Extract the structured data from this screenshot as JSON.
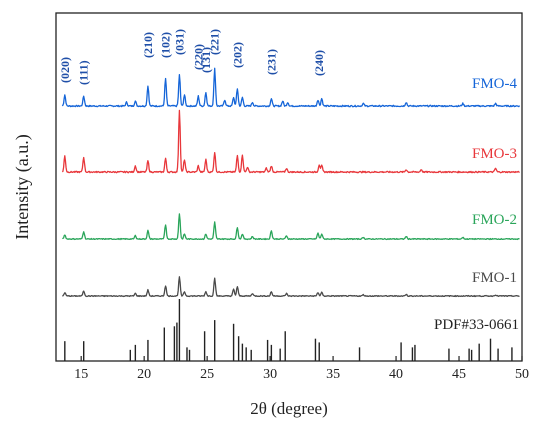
{
  "chart_data": {
    "type": "line",
    "xlabel": "2θ (degree)",
    "ylabel": "Intensity (a.u.)",
    "xlim": [
      13,
      50
    ],
    "x_ticks": [
      15,
      20,
      25,
      30,
      35,
      40,
      45,
      50
    ],
    "x_tick_labels": [
      "15",
      "20",
      "25",
      "30",
      "35",
      "40",
      "45",
      "50"
    ],
    "y_ticks_shown": false,
    "grid": false,
    "series": [
      {
        "name": "FMO-4",
        "color": "#1565d8",
        "peaks": [
          [
            13.7,
            18
          ],
          [
            15.2,
            16
          ],
          [
            18.6,
            6
          ],
          [
            19.3,
            8
          ],
          [
            20.3,
            32
          ],
          [
            21.7,
            44
          ],
          [
            22.8,
            50
          ],
          [
            23.2,
            18
          ],
          [
            24.3,
            16
          ],
          [
            24.9,
            22
          ],
          [
            25.6,
            60
          ],
          [
            26.4,
            10
          ],
          [
            27.1,
            14
          ],
          [
            27.4,
            28
          ],
          [
            27.8,
            14
          ],
          [
            28.6,
            6
          ],
          [
            30.1,
            12
          ],
          [
            31.0,
            8
          ],
          [
            31.4,
            6
          ],
          [
            33.8,
            10
          ],
          [
            34.1,
            12
          ],
          [
            37.4,
            4
          ],
          [
            40.8,
            6
          ],
          [
            45.3,
            4
          ],
          [
            47.9,
            4
          ]
        ]
      },
      {
        "name": "FMO-3",
        "color": "#e8373b",
        "peaks": [
          [
            13.7,
            26
          ],
          [
            15.2,
            24
          ],
          [
            19.3,
            10
          ],
          [
            20.3,
            18
          ],
          [
            21.7,
            22
          ],
          [
            22.8,
            100
          ],
          [
            23.2,
            20
          ],
          [
            24.3,
            10
          ],
          [
            24.9,
            20
          ],
          [
            25.6,
            32
          ],
          [
            27.4,
            26
          ],
          [
            27.8,
            28
          ],
          [
            28.2,
            8
          ],
          [
            29.7,
            6
          ],
          [
            30.1,
            10
          ],
          [
            31.3,
            6
          ],
          [
            33.9,
            12
          ],
          [
            34.1,
            10
          ],
          [
            40.8,
            4
          ],
          [
            42.0,
            4
          ],
          [
            47.9,
            6
          ]
        ]
      },
      {
        "name": "FMO-2",
        "color": "#2aa55a",
        "peaks": [
          [
            13.7,
            10
          ],
          [
            15.2,
            18
          ],
          [
            19.3,
            8
          ],
          [
            20.3,
            20
          ],
          [
            21.7,
            34
          ],
          [
            22.8,
            60
          ],
          [
            23.2,
            12
          ],
          [
            24.9,
            12
          ],
          [
            25.6,
            40
          ],
          [
            27.4,
            28
          ],
          [
            27.8,
            12
          ],
          [
            28.6,
            6
          ],
          [
            30.1,
            20
          ],
          [
            31.3,
            8
          ],
          [
            33.8,
            14
          ],
          [
            34.1,
            12
          ],
          [
            37.4,
            4
          ],
          [
            40.8,
            6
          ],
          [
            45.3,
            4
          ]
        ]
      },
      {
        "name": "FMO-1",
        "color": "#4a4a4a",
        "peaks": [
          [
            13.7,
            8
          ],
          [
            15.2,
            12
          ],
          [
            19.3,
            6
          ],
          [
            20.3,
            14
          ],
          [
            21.7,
            24
          ],
          [
            22.8,
            44
          ],
          [
            23.2,
            10
          ],
          [
            24.9,
            10
          ],
          [
            25.6,
            42
          ],
          [
            27.1,
            16
          ],
          [
            27.4,
            22
          ],
          [
            28.6,
            6
          ],
          [
            30.1,
            10
          ],
          [
            31.3,
            6
          ],
          [
            33.8,
            8
          ],
          [
            34.1,
            8
          ],
          [
            37.4,
            3
          ],
          [
            40.8,
            4
          ],
          [
            47.9,
            3
          ]
        ]
      }
    ],
    "reference": {
      "name": "PDF#33-0661",
      "color": "#222222",
      "lines": [
        [
          13.7,
          32
        ],
        [
          15.2,
          32
        ],
        [
          18.9,
          18
        ],
        [
          19.3,
          26
        ],
        [
          20.3,
          34
        ],
        [
          21.6,
          54
        ],
        [
          22.4,
          56
        ],
        [
          22.6,
          62
        ],
        [
          22.8,
          100
        ],
        [
          23.4,
          22
        ],
        [
          23.6,
          18
        ],
        [
          24.8,
          48
        ],
        [
          25.6,
          66
        ],
        [
          27.1,
          60
        ],
        [
          27.5,
          40
        ],
        [
          27.8,
          28
        ],
        [
          28.1,
          22
        ],
        [
          28.5,
          18
        ],
        [
          29.8,
          34
        ],
        [
          30.1,
          26
        ],
        [
          30.8,
          20
        ],
        [
          31.2,
          48
        ],
        [
          33.6,
          36
        ],
        [
          33.9,
          30
        ],
        [
          37.1,
          22
        ],
        [
          40.4,
          30
        ],
        [
          41.3,
          22
        ],
        [
          41.5,
          26
        ],
        [
          44.2,
          20
        ],
        [
          45.8,
          20
        ],
        [
          46.0,
          18
        ],
        [
          46.6,
          28
        ],
        [
          47.5,
          36
        ],
        [
          48.1,
          20
        ],
        [
          49.2,
          22
        ]
      ]
    },
    "annotations": [
      {
        "text": "(020)",
        "x": 13.7
      },
      {
        "text": "(111)",
        "x": 15.2
      },
      {
        "text": "(210)",
        "x": 20.3
      },
      {
        "text": "(102)",
        "x": 21.7
      },
      {
        "text": "(031)",
        "x": 22.8
      },
      {
        "text": "(220)",
        "x": 24.3
      },
      {
        "text": "(131)",
        "x": 24.9
      },
      {
        "text": "(221)",
        "x": 25.6
      },
      {
        "text": "(202)",
        "x": 27.4
      },
      {
        "text": "(231)",
        "x": 30.1
      },
      {
        "text": "(240)",
        "x": 33.9
      }
    ]
  }
}
